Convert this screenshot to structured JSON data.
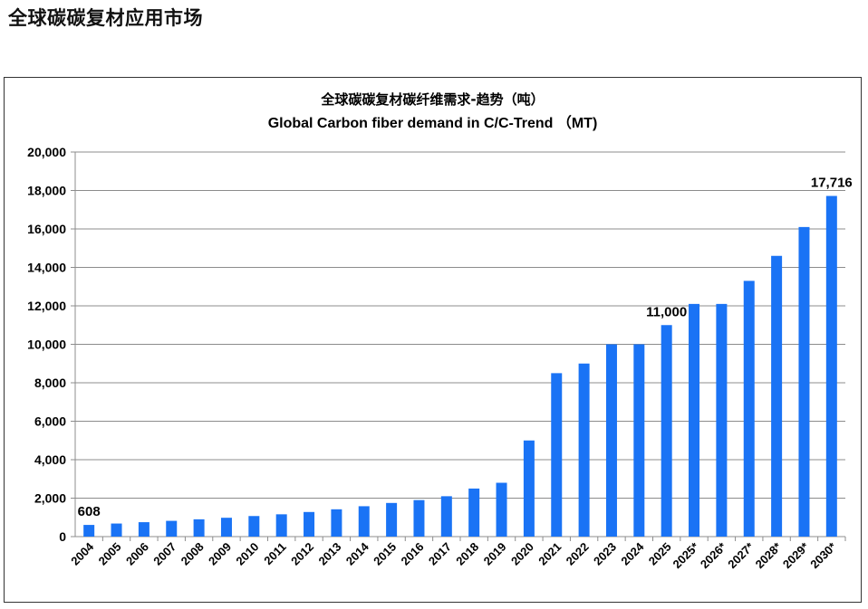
{
  "page": {
    "heading": "全球碳碳复材应用市场"
  },
  "colors": {
    "bar": "#1a73f5",
    "grid": "#8c8c8c",
    "axis": "#8c8c8c",
    "text": "#000000"
  },
  "chart_data": {
    "type": "bar",
    "title": "全球碳碳复材碳纤维需求-趋势（吨）",
    "subtitle": "Global Carbon fiber demand in C/C-Trend （MT)",
    "xlabel": "",
    "ylabel": "",
    "ylim": [
      0,
      20000
    ],
    "yticks": [
      0,
      2000,
      4000,
      6000,
      8000,
      10000,
      12000,
      14000,
      16000,
      18000,
      20000
    ],
    "ytick_labels": [
      "0",
      "2,000",
      "4,000",
      "6,000",
      "8,000",
      "10,000",
      "12,000",
      "14,000",
      "16,000",
      "18,000",
      "20,000"
    ],
    "grid": true,
    "legend": "none",
    "categories": [
      "2004",
      "2005",
      "2006",
      "2007",
      "2008",
      "2009",
      "2010",
      "2011",
      "2012",
      "2013",
      "2014",
      "2015",
      "2016",
      "2017",
      "2018",
      "2019",
      "2020",
      "2021",
      "2022",
      "2023",
      "2024",
      "2025",
      "2025*",
      "2026*",
      "2027*",
      "2028*",
      "2029*",
      "2030*"
    ],
    "values": [
      608,
      680,
      750,
      820,
      900,
      980,
      1070,
      1160,
      1280,
      1420,
      1580,
      1750,
      1900,
      2100,
      2500,
      2800,
      5000,
      8500,
      9000,
      10000,
      10000,
      11000,
      12100,
      12100,
      13300,
      14600,
      16100,
      17716
    ],
    "annotations": [
      {
        "index": 0,
        "text": "608"
      },
      {
        "index": 21,
        "text": "11,000"
      },
      {
        "index": 27,
        "text": "17,716"
      }
    ]
  }
}
